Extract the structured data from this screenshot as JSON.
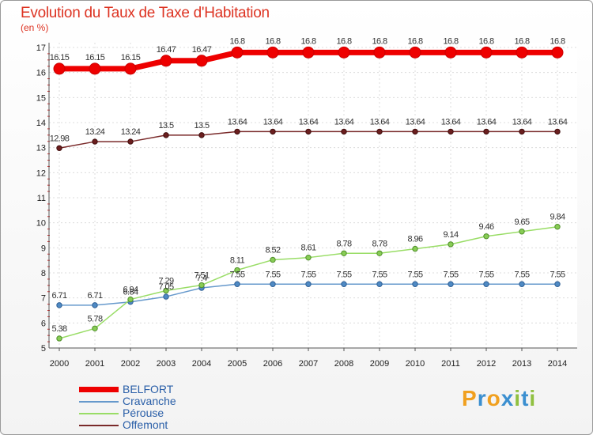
{
  "header": {
    "title": "Evolution du Taux de Taxe d'Habitation",
    "unit": "(en %)"
  },
  "chart_data": {
    "type": "line",
    "title": "Evolution du Taux de Taxe d'Habitation",
    "ylabel": "(en %)",
    "xlabel": "",
    "ylim": [
      5,
      17
    ],
    "yticks": [
      "5",
      "6",
      "7",
      "8",
      "9",
      "10",
      "11",
      "12",
      "13",
      "14",
      "15",
      "16",
      "17"
    ],
    "categories": [
      "2000",
      "2001",
      "2002",
      "2003",
      "2004",
      "2005",
      "2006",
      "2007",
      "2008",
      "2009",
      "2010",
      "2011",
      "2012",
      "2013",
      "2014"
    ],
    "series": [
      {
        "name": "BELFORT",
        "color": "#ee0000",
        "values": [
          16.15,
          16.15,
          16.15,
          16.47,
          16.47,
          16.8,
          16.8,
          16.8,
          16.8,
          16.8,
          16.8,
          16.8,
          16.8,
          16.8,
          16.8
        ],
        "labels": [
          "16.15",
          "16.15",
          "16.15",
          "16.47",
          "16.47",
          "16.8",
          "16.8",
          "16.8",
          "16.8",
          "16.8",
          "16.8",
          "16.8",
          "16.8",
          "16.8",
          "16.8"
        ]
      },
      {
        "name": "Cravanche",
        "color": "#6699cc",
        "values": [
          6.71,
          6.71,
          6.84,
          7.05,
          7.4,
          7.55,
          7.55,
          7.55,
          7.55,
          7.55,
          7.55,
          7.55,
          7.55,
          7.55,
          7.55
        ],
        "labels": [
          "6.71",
          "6.71",
          "6.84",
          "7.05",
          "7.4",
          "7.55",
          "7.55",
          "7.55",
          "7.55",
          "7.55",
          "7.55",
          "7.55",
          "7.55",
          "7.55",
          "7.55"
        ]
      },
      {
        "name": "Pérouse",
        "color": "#99dd66",
        "values": [
          5.38,
          5.78,
          6.94,
          7.29,
          7.51,
          8.11,
          8.52,
          8.61,
          8.78,
          8.78,
          8.96,
          9.14,
          9.46,
          9.65,
          9.84
        ],
        "labels": [
          "5.38",
          "5.78",
          "6.94",
          "7.29",
          "7.51",
          "8.11",
          "8.52",
          "8.61",
          "8.78",
          "8.78",
          "8.96",
          "9.14",
          "9.46",
          "9.65",
          "9.84"
        ]
      },
      {
        "name": "Offemont",
        "color": "#7a2a2a",
        "values": [
          12.98,
          13.24,
          13.24,
          13.5,
          13.5,
          13.64,
          13.64,
          13.64,
          13.64,
          13.64,
          13.64,
          13.64,
          13.64,
          13.64,
          13.64
        ],
        "labels": [
          "12.98",
          "13.24",
          "13.24",
          "13.5",
          "13.5",
          "13.64",
          "13.64",
          "13.64",
          "13.64",
          "13.64",
          "13.64",
          "13.64",
          "13.64",
          "13.64",
          "13.64"
        ]
      }
    ]
  },
  "legend": [
    {
      "label": "BELFORT",
      "color": "#ee0000"
    },
    {
      "label": "Cravanche",
      "color": "#6699cc"
    },
    {
      "label": "Pérouse",
      "color": "#99dd66"
    },
    {
      "label": "Offemont",
      "color": "#7a2a2a"
    }
  ],
  "logo": {
    "letters": [
      "P",
      "r",
      "o",
      "x",
      "i",
      "t",
      "i"
    ],
    "colors": [
      "#f0a020",
      "#3b8fd0",
      "#f0a020",
      "#3b8fd0",
      "#90c040",
      "#3b8fd0",
      "#90c040"
    ]
  }
}
